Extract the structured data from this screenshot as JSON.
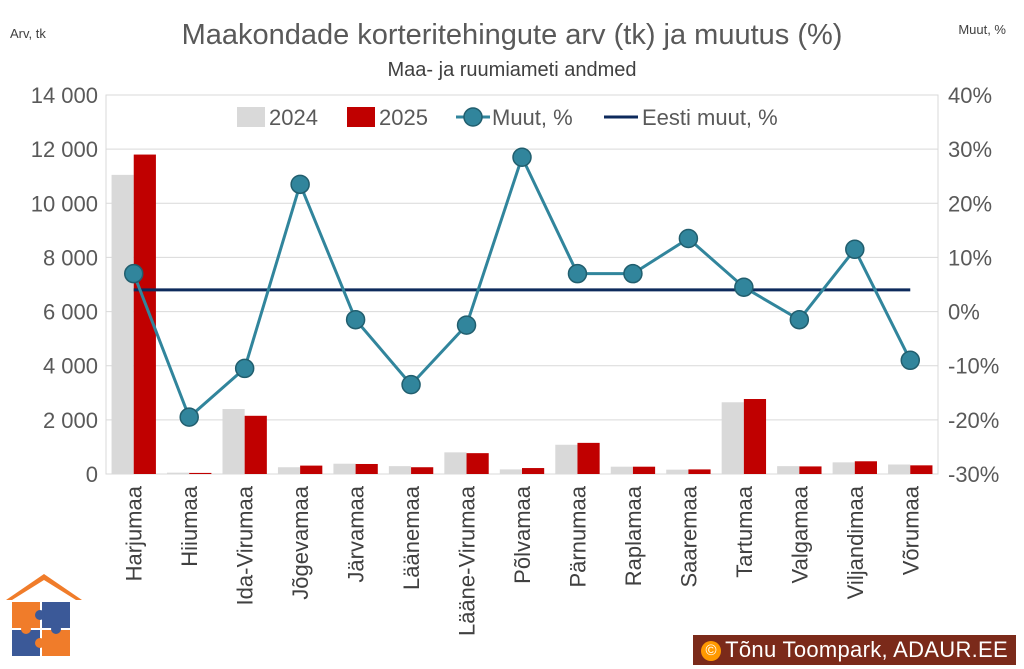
{
  "chart_data": {
    "type": "bar+line",
    "title": "Maakondade korteritehingute arv (tk) ja muutus (%)",
    "subtitle": "Maa- ja ruumiameti andmed",
    "ylabel_left": "Arv, tk",
    "ylabel_right": "Muut, %",
    "ylim_left": [
      0,
      14000
    ],
    "ylim_right": [
      -30,
      40
    ],
    "yticks_left": [
      "0",
      "2 000",
      "4 000",
      "6 000",
      "8 000",
      "10 000",
      "12 000",
      "14 000"
    ],
    "yticks_right": [
      "-30%",
      "-20%",
      "-10%",
      "0%",
      "10%",
      "20%",
      "30%",
      "40%"
    ],
    "categories": [
      "Harjumaa",
      "Hiiumaa",
      "Ida-Virumaa",
      "Jõgevamaa",
      "Järvamaa",
      "Läänemaa",
      "Lääne-Virumaa",
      "Põlvamaa",
      "Pärnumaa",
      "Raplamaa",
      "Saaremaa",
      "Tartumaa",
      "Valgamaa",
      "Viljandimaa",
      "Võrumaa"
    ],
    "series": [
      {
        "name": "2024",
        "kind": "bar",
        "axis": "left",
        "color": "#d9d9d9",
        "values": [
          11050,
          50,
          2400,
          250,
          380,
          290,
          800,
          170,
          1080,
          270,
          160,
          2650,
          290,
          430,
          350
        ]
      },
      {
        "name": "2025",
        "kind": "bar",
        "axis": "left",
        "color": "#c00000",
        "values": [
          11800,
          40,
          2150,
          310,
          370,
          250,
          770,
          220,
          1150,
          270,
          170,
          2770,
          280,
          470,
          320
        ]
      },
      {
        "name": "Muut, %",
        "kind": "line-marker",
        "axis": "right",
        "color": "#31859c",
        "values": [
          7,
          -19.5,
          -10.5,
          23.5,
          -1.5,
          -13.5,
          -2.5,
          28.5,
          7,
          7,
          13.5,
          4.5,
          -1.5,
          11.5,
          -9
        ]
      },
      {
        "name": "Eesti muut, %",
        "kind": "line",
        "axis": "right",
        "color": "#0d2a5c",
        "values": [
          4,
          4,
          4,
          4,
          4,
          4,
          4,
          4,
          4,
          4,
          4,
          4,
          4,
          4,
          4
        ]
      }
    ],
    "legend_position": "top"
  },
  "footer": {
    "symbol": "©",
    "text": "Tõnu Toompark, ADAUR.EE"
  },
  "logo": {
    "name": "house-puzzle-logo"
  }
}
